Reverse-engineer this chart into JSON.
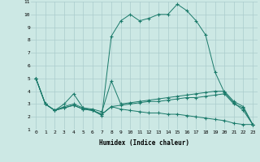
{
  "xlabel": "Humidex (Indice chaleur)",
  "background_color": "#cce8e4",
  "grid_color": "#aacccc",
  "line_color": "#1a7a6a",
  "xlim": [
    -0.5,
    23.5
  ],
  "ylim": [
    1,
    11
  ],
  "xticks": [
    0,
    1,
    2,
    3,
    4,
    5,
    6,
    7,
    8,
    9,
    10,
    11,
    12,
    13,
    14,
    15,
    16,
    17,
    18,
    19,
    20,
    21,
    22,
    23
  ],
  "yticks": [
    1,
    2,
    3,
    4,
    5,
    6,
    7,
    8,
    9,
    10,
    11
  ],
  "series": [
    [
      5.0,
      3.0,
      2.5,
      3.0,
      3.8,
      2.7,
      2.5,
      2.1,
      8.3,
      9.5,
      10.0,
      9.5,
      9.7,
      10.0,
      10.0,
      10.8,
      10.3,
      9.5,
      8.4,
      5.5,
      3.9,
      3.1,
      2.5,
      1.4
    ],
    [
      5.0,
      3.0,
      2.5,
      2.8,
      3.0,
      2.7,
      2.6,
      2.4,
      4.8,
      3.0,
      3.1,
      3.2,
      3.3,
      3.4,
      3.5,
      3.6,
      3.7,
      3.8,
      3.9,
      4.0,
      4.0,
      3.2,
      2.8,
      1.4
    ],
    [
      5.0,
      3.0,
      2.5,
      2.7,
      2.9,
      2.6,
      2.5,
      2.2,
      2.8,
      2.6,
      2.5,
      2.4,
      2.3,
      2.3,
      2.2,
      2.2,
      2.1,
      2.0,
      1.9,
      1.8,
      1.7,
      1.5,
      1.4,
      1.4
    ],
    [
      5.0,
      3.0,
      2.5,
      2.7,
      2.9,
      2.6,
      2.5,
      2.2,
      2.8,
      2.9,
      3.0,
      3.1,
      3.2,
      3.2,
      3.3,
      3.4,
      3.5,
      3.5,
      3.6,
      3.7,
      3.8,
      3.0,
      2.7,
      1.4
    ]
  ]
}
